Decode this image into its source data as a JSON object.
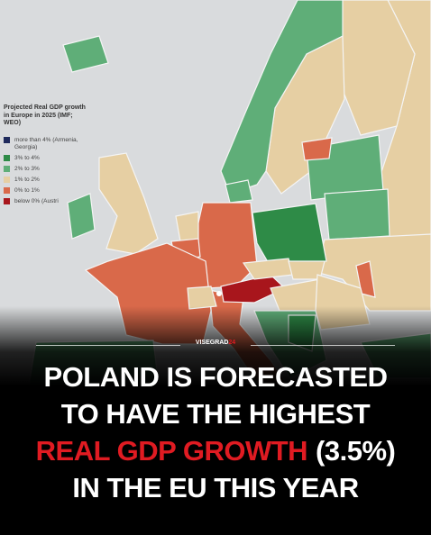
{
  "legend": {
    "title": "Projected Real GDP growth in Europe in 2025 (IMF; WEO)",
    "items": [
      {
        "label": "more than 4% (Armenia, Georgia)",
        "color": "#1f2a5c"
      },
      {
        "label": "3% to 4%",
        "color": "#2e8b47"
      },
      {
        "label": "2% to 3%",
        "color": "#5fae78"
      },
      {
        "label": "1% to 2%",
        "color": "#e6cfa3"
      },
      {
        "label": "0% to 1%",
        "color": "#d9694a"
      },
      {
        "label": "below 0% (Austri",
        "color": "#a8161c"
      }
    ]
  },
  "brand": {
    "name": "VISEGRAD",
    "number": "24"
  },
  "headline": {
    "line1": "POLAND IS FORECASTED",
    "line2": "TO HAVE THE HIGHEST",
    "line3_highlight": "REAL GDP GROWTH",
    "line3_rest": "(3.5%)",
    "line4": "IN THE EU THIS YEAR"
  }
}
